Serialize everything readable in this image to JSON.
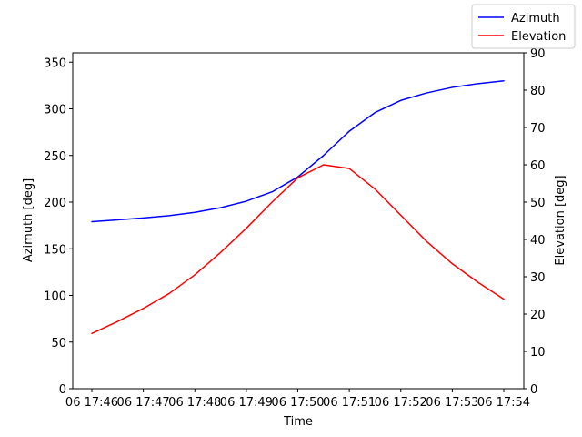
{
  "chart_data": {
    "type": "line",
    "x_label": "Time",
    "x_ticks": [
      "06 17:46",
      "06 17:47",
      "06 17:48",
      "06 17:49",
      "06 17:50",
      "06 17:51",
      "06 17:52",
      "06 17:53",
      "06 17:54"
    ],
    "x": [
      0,
      0.5,
      1,
      1.5,
      2,
      2.5,
      3,
      3.5,
      4,
      4.5,
      5,
      5.5,
      6,
      6.5,
      7,
      7.5,
      8
    ],
    "y_left": {
      "label": "Azimuth [deg]",
      "ylim": [
        0,
        360
      ],
      "ticks": [
        0,
        50,
        100,
        150,
        200,
        250,
        300,
        350
      ]
    },
    "y_right": {
      "label": "Elevation [deg]",
      "ylim": [
        0,
        90
      ],
      "ticks": [
        0,
        10,
        20,
        30,
        40,
        50,
        60,
        70,
        80,
        90
      ]
    },
    "series": [
      {
        "name": "Azimuth",
        "axis": "left",
        "color": "#0000ff",
        "values": [
          179,
          181,
          183,
          185.5,
          189,
          194,
          201,
          211,
          227,
          250,
          276,
          296,
          309,
          317,
          323,
          327,
          330
        ]
      },
      {
        "name": "Elevation",
        "axis": "right",
        "color": "#ff0000",
        "values": [
          14.8,
          18,
          21.5,
          25.5,
          30.5,
          36.5,
          43,
          50,
          56.5,
          60,
          59,
          53.5,
          46.5,
          39.5,
          33.5,
          28.5,
          24
        ]
      }
    ],
    "legend_position": "top-right"
  }
}
